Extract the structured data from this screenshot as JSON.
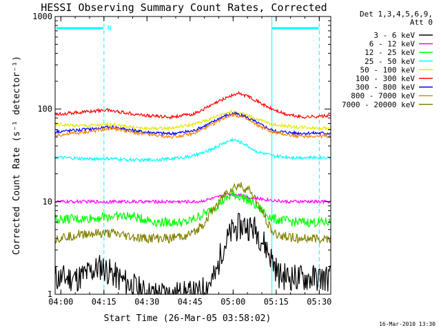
{
  "chart_data": {
    "type": "line",
    "title": "HESSI Observing Summary Count Rates, Corrected",
    "xlabel": "Start Time (26-Mar-05 03:58:02)",
    "ylabel": "Corrected Count Rate (s⁻¹ detector⁻¹)",
    "yscale": "log",
    "ylim": [
      1,
      1000
    ],
    "xlim_minutes": [
      0,
      96
    ],
    "x_ticks": [
      {
        "m": 2,
        "label": "04:00"
      },
      {
        "m": 17,
        "label": "04:15"
      },
      {
        "m": 32,
        "label": "04:30"
      },
      {
        "m": 47,
        "label": "04:45"
      },
      {
        "m": 62,
        "label": "05:00"
      },
      {
        "m": 77,
        "label": "05:15"
      },
      {
        "m": 92,
        "label": "05:30"
      }
    ],
    "y_ticks": [
      {
        "v": 1,
        "label": "1"
      },
      {
        "v": 10,
        "label": "10"
      },
      {
        "v": 100,
        "label": "100"
      },
      {
        "v": 1000,
        "label": "1000"
      }
    ],
    "night_marker_label": "N",
    "legend_header": [
      "Det 1,3,4,5,6,9,",
      "Att 0"
    ],
    "legend_placement": "top-right outside",
    "series": [
      {
        "name": "3 - 6 keV",
        "color": "#000000",
        "x": [
          0,
          8,
          16,
          22,
          32,
          40,
          50,
          56,
          58,
          62,
          66,
          70,
          74,
          78,
          84,
          90,
          94
        ],
        "y": [
          1.5,
          1.5,
          2.0,
          1.5,
          1.0,
          1.0,
          1.0,
          1.6,
          3.0,
          5.0,
          5.6,
          5.0,
          3.0,
          1.6,
          1.5,
          1.5,
          1.5
        ]
      },
      {
        "name": "6 - 12 keV",
        "color": "#ff00ff",
        "x": [
          0,
          10,
          20,
          30,
          40,
          50,
          56,
          60,
          64,
          68,
          74,
          80,
          86,
          94
        ],
        "y": [
          10,
          10,
          10,
          10,
          10,
          10,
          11,
          12,
          12,
          11,
          10.5,
          10,
          10,
          10
        ]
      },
      {
        "name": "12 - 25 keV",
        "color": "#00ff00",
        "x": [
          0,
          10,
          20,
          26,
          36,
          46,
          54,
          58,
          62,
          66,
          70,
          76,
          84,
          94
        ],
        "y": [
          6.5,
          6.5,
          7,
          7,
          6,
          6,
          8,
          10,
          12,
          11,
          9,
          6.5,
          6,
          6
        ]
      },
      {
        "name": "25 - 50 keV",
        "color": "#00ffff",
        "x": [
          0,
          10,
          20,
          30,
          40,
          48,
          54,
          58,
          62,
          66,
          70,
          76,
          84,
          94
        ],
        "y": [
          30,
          29,
          29,
          28,
          29,
          31,
          36,
          42,
          47,
          42,
          35,
          31,
          30,
          30
        ]
      },
      {
        "name": "50 - 100 keV",
        "color": "#e6e600",
        "x": [
          0,
          10,
          20,
          30,
          40,
          48,
          54,
          58,
          62,
          66,
          70,
          76,
          84,
          94
        ],
        "y": [
          68,
          66,
          68,
          62,
          62,
          68,
          78,
          88,
          95,
          88,
          78,
          68,
          64,
          62
        ]
      },
      {
        "name": "100 - 300 keV",
        "color": "#ff0000",
        "x": [
          0,
          8,
          18,
          24,
          32,
          40,
          48,
          54,
          60,
          64,
          68,
          74,
          80,
          86,
          94
        ],
        "y": [
          88,
          92,
          98,
          92,
          85,
          82,
          88,
          108,
          135,
          148,
          135,
          105,
          88,
          82,
          84
        ]
      },
      {
        "name": "300 - 800 keV",
        "color": "#0000ff",
        "x": [
          0,
          10,
          20,
          30,
          40,
          48,
          54,
          58,
          62,
          66,
          70,
          76,
          84,
          94
        ],
        "y": [
          57,
          60,
          64,
          57,
          54,
          58,
          70,
          82,
          90,
          84,
          72,
          58,
          55,
          55
        ]
      },
      {
        "name": "800 - 7000 keV",
        "color": "#ff8000",
        "x": [
          0,
          10,
          20,
          30,
          40,
          48,
          54,
          58,
          62,
          66,
          70,
          76,
          84,
          94
        ],
        "y": [
          52,
          56,
          62,
          54,
          50,
          54,
          66,
          78,
          88,
          80,
          68,
          56,
          51,
          51
        ]
      },
      {
        "name": "7000 - 20000 keV",
        "color": "#808000",
        "x": [
          0,
          10,
          20,
          30,
          40,
          48,
          52,
          56,
          60,
          64,
          68,
          72,
          76,
          84,
          94
        ],
        "y": [
          4,
          4.5,
          4.5,
          4,
          4,
          4.5,
          6,
          9,
          13,
          15,
          13,
          8,
          4.5,
          4,
          4
        ]
      }
    ],
    "footer_date": "16-Mar-2010 13:30"
  }
}
